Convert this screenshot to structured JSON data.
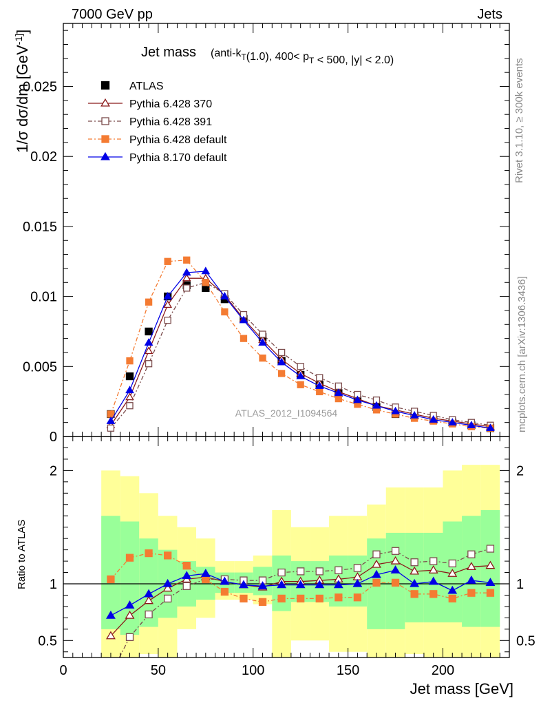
{
  "header": {
    "left": "7000 GeV pp",
    "right": "Jets"
  },
  "side_labels": {
    "rivet": "Rivet 3.1.10, ≥ 300k events",
    "mcplots": "mcplots.cern.ch [arXiv:1306.3436]"
  },
  "watermark": "ATLAS_2012_I1094564",
  "colors": {
    "atlas": "#000000",
    "py370": "#8b1a1a",
    "py391": "#7b4b4b",
    "py6def": "#f47b32",
    "py8def": "#0000e6",
    "band_yellow": "#ffff99",
    "band_green": "#99ff99"
  },
  "chart_data": [
    {
      "type": "scatter",
      "title": "Jet mass",
      "title_detail": "(anti-k_T(1.0), 400< p_T < 500, |y| < 2.0)",
      "ylabel": "1/σ dσ/dm [GeV^-1]",
      "xlim": [
        0,
        235
      ],
      "ylim": [
        0,
        0.0295
      ],
      "yticks": [
        0,
        0.005,
        0.01,
        0.015,
        0.02,
        0.025
      ],
      "ytick_labels": [
        "0",
        "0.005",
        "0.01",
        "0.015",
        "0.02",
        "0.025"
      ],
      "legend_position": "top-left",
      "x": [
        25,
        35,
        45,
        55,
        65,
        75,
        85,
        95,
        105,
        115,
        125,
        135,
        145,
        155,
        165,
        175,
        185,
        195,
        205,
        215,
        225
      ],
      "series": [
        {
          "name": "ATLAS",
          "style": "data",
          "values": [
            0.0016,
            0.0043,
            0.0075,
            0.01,
            0.0108,
            0.0106,
            0.0098,
            0.0084,
            0.0071,
            0.0054,
            0.0044,
            0.0037,
            0.0031,
            0.0026,
            0.0021,
            0.0016,
            0.0015,
            0.0012,
            0.001,
            0.0008,
            0.0006
          ]
        },
        {
          "name": "Pythia 6.428 370",
          "style": "solid-triangle-open",
          "values": [
            0.0008,
            0.0028,
            0.0061,
            0.0094,
            0.0113,
            0.0113,
            0.0101,
            0.0084,
            0.0069,
            0.0055,
            0.0045,
            0.0038,
            0.0032,
            0.0027,
            0.0022,
            0.0019,
            0.0016,
            0.0013,
            0.0011,
            0.0009,
            0.0007
          ]
        },
        {
          "name": "Pythia 6.428 391",
          "style": "dashdot-square-open",
          "values": [
            0.0006,
            0.0022,
            0.0052,
            0.0083,
            0.0106,
            0.011,
            0.0102,
            0.0087,
            0.0073,
            0.006,
            0.005,
            0.0042,
            0.0036,
            0.003,
            0.0026,
            0.0021,
            0.0018,
            0.0015,
            0.0012,
            0.001,
            0.0008
          ]
        },
        {
          "name": "Pythia 6.428 default",
          "style": "dashdot-square-filled",
          "values": [
            0.0016,
            0.0054,
            0.0096,
            0.0125,
            0.0126,
            0.011,
            0.0089,
            0.007,
            0.0056,
            0.0045,
            0.0037,
            0.0032,
            0.0027,
            0.0023,
            0.0019,
            0.0016,
            0.0013,
            0.0011,
            0.0009,
            0.0007,
            0.0006
          ]
        },
        {
          "name": "Pythia 8.170 default",
          "style": "solid-triangle-filled",
          "values": [
            0.0011,
            0.0033,
            0.0067,
            0.01,
            0.0117,
            0.0118,
            0.01,
            0.0083,
            0.0067,
            0.0053,
            0.0043,
            0.0036,
            0.0031,
            0.0026,
            0.0022,
            0.0018,
            0.0015,
            0.0012,
            0.001,
            0.0008,
            0.0006
          ]
        }
      ]
    },
    {
      "type": "line",
      "ylabel": "Ratio to ATLAS",
      "xlabel": "Jet mass [GeV]",
      "xlim": [
        0,
        235
      ],
      "ylim": [
        0.35,
        2.3
      ],
      "yticks": [
        0.5,
        1,
        2
      ],
      "ytick_labels": [
        "0.5",
        "1",
        "2"
      ],
      "xticks": [
        0,
        50,
        100,
        150,
        200
      ],
      "xtick_labels": [
        "0",
        "50",
        "100",
        "150",
        "200"
      ],
      "bin_edges": [
        20,
        30,
        40,
        50,
        60,
        70,
        80,
        90,
        100,
        110,
        120,
        130,
        140,
        150,
        160,
        170,
        180,
        190,
        200,
        210,
        220,
        230
      ],
      "band_outer_low": [
        0.3,
        0.3,
        0.38,
        0.3,
        0.6,
        0.7,
        0.86,
        0.86,
        0.82,
        0.3,
        0.5,
        0.5,
        0.4,
        0.4,
        0.3,
        0.3,
        0.38,
        0.3,
        0.3,
        0.3,
        0.3
      ],
      "band_outer_high": [
        2.0,
        1.95,
        1.8,
        1.6,
        1.5,
        1.4,
        1.2,
        1.2,
        1.25,
        1.65,
        1.5,
        1.5,
        1.6,
        1.6,
        1.7,
        1.85,
        1.85,
        1.85,
        2.0,
        2.05,
        2.05
      ],
      "band_inner_low": [
        0.6,
        0.55,
        0.62,
        0.7,
        0.8,
        0.86,
        0.92,
        0.92,
        0.9,
        0.76,
        0.84,
        0.84,
        0.8,
        0.8,
        0.6,
        0.6,
        0.66,
        0.66,
        0.66,
        0.62,
        0.62
      ],
      "band_inner_high": [
        1.6,
        1.55,
        1.4,
        1.3,
        1.2,
        1.15,
        1.1,
        1.1,
        1.15,
        1.25,
        1.2,
        1.2,
        1.25,
        1.25,
        1.4,
        1.45,
        1.45,
        1.45,
        1.55,
        1.6,
        1.65
      ],
      "x": [
        25,
        35,
        45,
        55,
        65,
        75,
        85,
        95,
        105,
        115,
        125,
        135,
        145,
        155,
        165,
        175,
        185,
        195,
        205,
        215,
        225
      ],
      "series": [
        {
          "name": "Pythia 6.428 370",
          "style": "solid-triangle-open",
          "values": [
            0.54,
            0.72,
            0.85,
            0.96,
            1.04,
            1.06,
            1.02,
            0.99,
            0.97,
            1.02,
            1.02,
            1.03,
            1.04,
            1.06,
            1.17,
            1.2,
            1.11,
            1.12,
            1.09,
            1.15,
            1.16
          ]
        },
        {
          "name": "Pythia 6.428 391",
          "style": "dashdot-square-open",
          "values": [
            0.2,
            0.53,
            0.73,
            0.87,
            0.98,
            1.04,
            1.04,
            1.03,
            1.03,
            1.1,
            1.11,
            1.11,
            1.12,
            1.14,
            1.26,
            1.29,
            1.19,
            1.2,
            1.18,
            1.26,
            1.31
          ]
        },
        {
          "name": "Pythia 6.428 default",
          "style": "dashdot-square-filled",
          "values": [
            1.04,
            1.23,
            1.27,
            1.25,
            1.16,
            1.04,
            0.93,
            0.87,
            0.84,
            0.87,
            0.87,
            0.87,
            0.88,
            0.88,
            1.01,
            1.01,
            0.91,
            0.91,
            0.87,
            0.92,
            0.92
          ]
        },
        {
          "name": "Pythia 8.170 default",
          "style": "solid-triangle-filled",
          "values": [
            0.72,
            0.81,
            0.91,
            1.0,
            1.07,
            1.09,
            1.02,
            0.99,
            0.98,
            0.99,
            0.99,
            0.99,
            0.99,
            1.0,
            1.08,
            1.12,
            1.0,
            1.02,
            0.94,
            1.03,
            1.01
          ]
        }
      ]
    }
  ]
}
